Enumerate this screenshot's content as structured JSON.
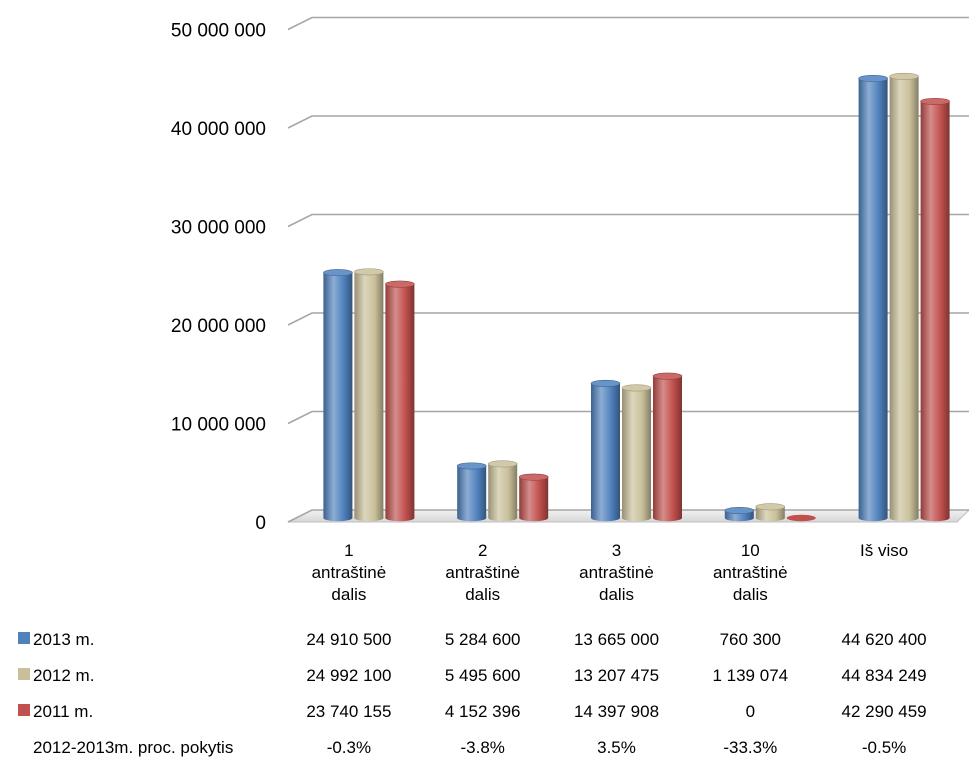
{
  "chart_data": {
    "type": "bar",
    "style": "3d-cylinder",
    "categories": [
      [
        "1",
        "antraštinė",
        "dalis"
      ],
      [
        "2",
        "antraštinė",
        "dalis"
      ],
      [
        "3",
        "antraštinė",
        "dalis"
      ],
      [
        "10",
        "antraštinė",
        "dalis"
      ],
      [
        "Iš viso"
      ]
    ],
    "series": [
      {
        "name": "2013 m.",
        "color": "#4f81bd",
        "values": [
          24910500,
          5284600,
          13665000,
          760300,
          44620400
        ],
        "labels": [
          "24 910 500",
          "5 284 600",
          "13 665 000",
          "760 300",
          "44 620 400"
        ]
      },
      {
        "name": "2012 m.",
        "color": "#c9c09a",
        "values": [
          24992100,
          5495600,
          13207475,
          1139074,
          44834249
        ],
        "labels": [
          "24 992 100",
          "5 495 600",
          "13 207 475",
          "1 139 074",
          "44 834 249"
        ]
      },
      {
        "name": "2011 m.",
        "color": "#c0504d",
        "values": [
          23740155,
          4152396,
          14397908,
          0,
          42290459
        ],
        "labels": [
          "23 740 155",
          "4 152 396",
          "14 397 908",
          "0",
          "42 290 459"
        ]
      }
    ],
    "extra_row": {
      "name": "2012-2013m. proc. pokytis",
      "values": [
        "-0.3%",
        "-3.8%",
        "3.5%",
        "-33.3%",
        "-0.5%"
      ]
    },
    "y_ticks": [
      0,
      10000000,
      20000000,
      30000000,
      40000000,
      50000000
    ],
    "y_tick_labels": [
      "0",
      "10 000 000",
      "20 000 000",
      "30 000 000",
      "40 000 000",
      "50 000 000"
    ],
    "ylim": [
      0,
      50000000
    ],
    "title": "",
    "xlabel": "",
    "ylabel": "",
    "grid": true,
    "legend": "data-table-below"
  }
}
